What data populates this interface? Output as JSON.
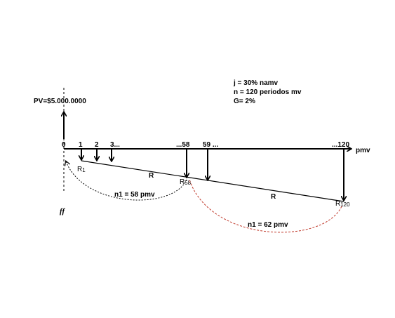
{
  "params": {
    "j": "j = 30% namv",
    "n": "n = 120 periodos mv",
    "g": "G= 2%"
  },
  "pv_label": "PV=$5.000.0000",
  "axis": {
    "unit_label": "pmv",
    "ticks": [
      "0",
      "1",
      "2",
      "3...",
      "...58",
      "59 ...",
      "...120"
    ]
  },
  "payments": {
    "r1_main": "R",
    "r1_sub": "1",
    "r58_main": "R",
    "r58_sub": "58",
    "r120_main": "R",
    "r120_sub": "120",
    "r_line_1": "R",
    "r_line_2": "R"
  },
  "arcs": {
    "first": "n1 = 58 pmv",
    "second": "n1 = 62 pmv"
  },
  "ff_label": "ff",
  "colors": {
    "black": "#000000",
    "red_arc": "#c0392b"
  }
}
